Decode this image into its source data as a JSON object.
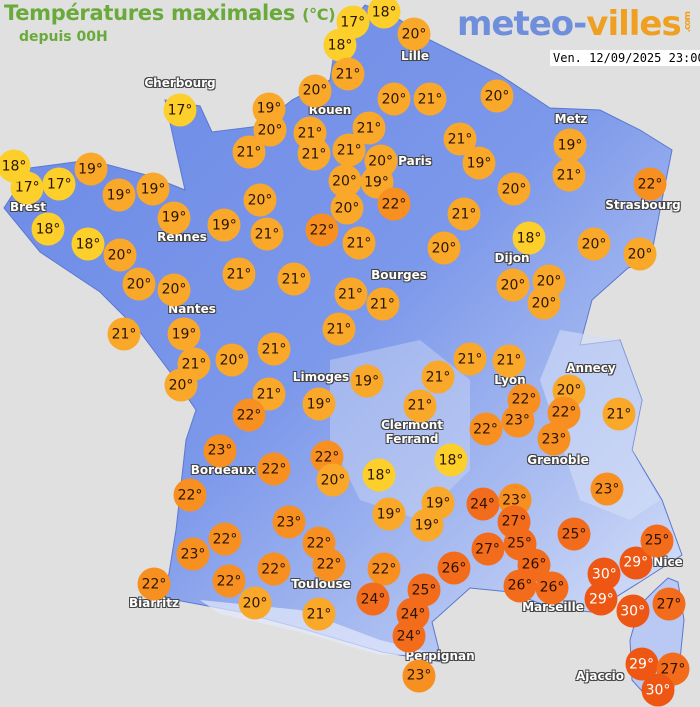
{
  "header": {
    "title": "Températures maximales",
    "unit": "(°C)",
    "subtitle": "depuis 00H",
    "logo": {
      "part1": "meteo-",
      "part2": "villes",
      "tld": ".com"
    },
    "datetime": "Ven. 12/09/2025 23:00"
  },
  "colors": {
    "background": "#e0e0e0",
    "land": "#6f8ee8",
    "highland": "#c8d4f4",
    "cool": "#fccf2a",
    "mild": "#f9a82a",
    "warm": "#f79020",
    "hot": "#f36c1c",
    "very_hot": "#ee5614"
  },
  "cities": [
    "Cherbourg",
    "Lille",
    "Rouen",
    "Paris",
    "Metz",
    "Strasbourg",
    "Brest",
    "Rennes",
    "Dijon",
    "Bourges",
    "Nantes",
    "Annecy",
    "Limoges",
    "Lyon",
    "Clermont\nFerrand",
    "Grenoble",
    "Bordeaux",
    "Nice",
    "Marseille",
    "Toulouse",
    "Biarritz",
    "Perpignan",
    "Ajaccio"
  ],
  "readings": [
    17,
    18,
    18,
    20,
    21,
    20,
    19,
    20,
    21,
    21,
    21,
    21,
    21,
    20,
    21,
    20,
    21,
    19,
    20,
    20,
    19,
    22,
    20,
    22,
    20,
    21,
    18,
    20,
    20,
    20,
    19,
    21,
    22,
    20,
    20,
    20,
    21,
    21,
    21,
    21,
    20,
    19,
    19,
    19,
    19,
    19,
    17,
    17,
    18,
    18,
    18,
    20,
    20,
    20,
    21,
    19,
    21,
    20,
    20,
    21,
    21,
    21,
    21,
    21,
    21,
    22,
    23,
    20,
    22,
    21,
    23,
    23,
    22,
    21,
    21,
    19,
    21,
    22,
    19,
    23,
    22,
    22,
    20,
    18,
    18,
    19,
    19,
    19,
    24,
    23,
    27,
    27,
    25,
    26,
    26,
    26,
    25,
    30,
    29,
    29,
    25,
    30,
    27,
    29,
    27,
    30,
    26,
    25,
    22,
    24,
    24,
    24,
    23,
    22,
    23,
    22,
    22,
    22,
    22,
    20,
    23,
    22,
    22,
    21,
    17
  ]
}
